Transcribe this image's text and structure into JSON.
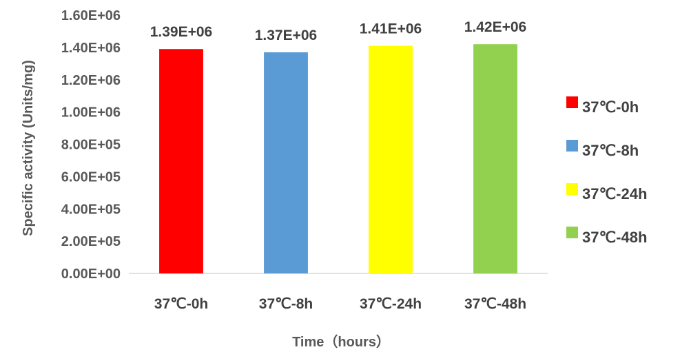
{
  "chart_data": {
    "type": "bar",
    "categories": [
      "37℃-0h",
      "37℃-8h",
      "37℃-24h",
      "37℃-48h"
    ],
    "values": [
      1390000,
      1370000,
      1410000,
      1420000
    ],
    "data_labels": [
      "1.39E+06",
      "1.37E+06",
      "1.41E+06",
      "1.42E+06"
    ],
    "colors": [
      "#ff0000",
      "#5b9bd5",
      "#ffff00",
      "#92d050"
    ],
    "xlabel": "Time（hours）",
    "ylabel": "Specific activity (Units/mg)",
    "ylim": [
      0,
      1600000
    ],
    "y_ticks": [
      0,
      200000,
      400000,
      600000,
      800000,
      1000000,
      1200000,
      1400000,
      1600000
    ],
    "y_tick_labels": [
      "0.00E+00",
      "2.00E+05",
      "4.00E+05",
      "6.00E+05",
      "8.00E+05",
      "1.00E+06",
      "1.20E+06",
      "1.40E+06",
      "1.60E+06"
    ],
    "grid": false,
    "legend": {
      "placement": "right",
      "entries": [
        "37℃-0h",
        "37℃-8h",
        "37℃-24h",
        "37℃-48h"
      ]
    }
  }
}
